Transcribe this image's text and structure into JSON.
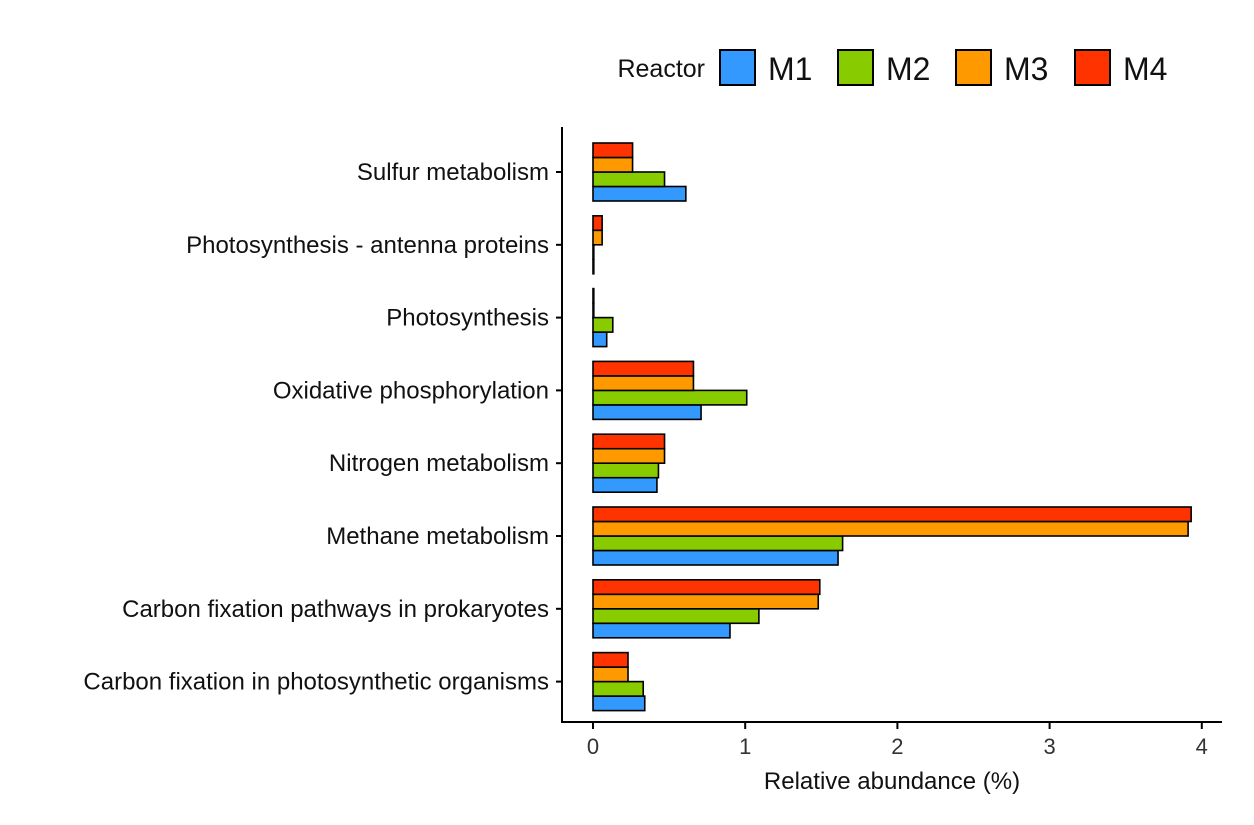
{
  "chart_data": {
    "type": "bar",
    "orientation": "horizontal",
    "categories": [
      "Sulfur metabolism",
      "Photosynthesis - antenna proteins",
      "Photosynthesis",
      "Oxidative phosphorylation",
      "Nitrogen metabolism",
      "Methane metabolism",
      "Carbon fixation pathways in prokaryotes",
      "Carbon fixation in photosynthetic organisms"
    ],
    "series": [
      {
        "name": "M1",
        "color": "#3399ff",
        "values": [
          0.61,
          0.005,
          0.09,
          0.71,
          0.42,
          1.61,
          0.9,
          0.34
        ]
      },
      {
        "name": "M2",
        "color": "#88cc00",
        "values": [
          0.47,
          0.005,
          0.13,
          1.01,
          0.43,
          1.64,
          1.09,
          0.33
        ]
      },
      {
        "name": "M3",
        "color": "#ff9900",
        "values": [
          0.26,
          0.06,
          0.005,
          0.66,
          0.47,
          3.91,
          1.48,
          0.23
        ]
      },
      {
        "name": "M4",
        "color": "#ff3300",
        "values": [
          0.26,
          0.06,
          0.005,
          0.66,
          0.47,
          3.93,
          1.49,
          0.23
        ]
      }
    ],
    "xlabel": "Relative abundance (%)",
    "ylabel": "",
    "xlim": [
      -0.2,
      4.13
    ],
    "xticks": [
      0,
      1,
      2,
      3,
      4
    ],
    "grid": false,
    "legend": {
      "title": "Reactor",
      "position": "top-right",
      "entries": [
        "M1",
        "M2",
        "M3",
        "M4"
      ]
    }
  }
}
